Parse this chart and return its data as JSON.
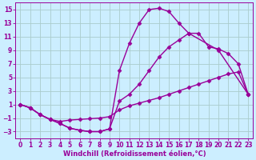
{
  "background_color": "#cceeff",
  "grid_color": "#aacccc",
  "line_color": "#990099",
  "marker": "D",
  "marker_size": 2.5,
  "line_width": 1.0,
  "xlabel": "Windchill (Refroidissement éolien,°C)",
  "xlabel_fontsize": 6,
  "tick_fontsize": 5.5,
  "xlim": [
    -0.5,
    23.5
  ],
  "ylim": [
    -4,
    16
  ],
  "yticks": [
    -3,
    -1,
    1,
    3,
    5,
    7,
    9,
    11,
    13,
    15
  ],
  "xticks": [
    0,
    1,
    2,
    3,
    4,
    5,
    6,
    7,
    8,
    9,
    10,
    11,
    12,
    13,
    14,
    15,
    16,
    17,
    18,
    19,
    20,
    21,
    22,
    23
  ],
  "curve1_x": [
    0,
    1,
    2,
    3,
    4,
    5,
    6,
    7,
    8,
    9,
    10,
    11,
    12,
    13,
    14,
    15,
    16,
    17,
    20,
    23
  ],
  "curve1_y": [
    1,
    0.5,
    -0.5,
    -1.2,
    -1.8,
    -2.5,
    -2.8,
    -3.0,
    -3.0,
    -2.6,
    6.0,
    10.0,
    13.0,
    15.0,
    15.2,
    14.7,
    13.0,
    11.5,
    9.0,
    2.5
  ],
  "curve2_x": [
    0,
    1,
    2,
    3,
    4,
    5,
    6,
    7,
    8,
    9,
    10,
    11,
    12,
    13,
    14,
    15,
    16,
    17,
    18,
    19,
    20,
    21,
    22,
    23
  ],
  "curve2_y": [
    1,
    0.5,
    -0.5,
    -1.2,
    -1.8,
    -2.5,
    -2.8,
    -3.0,
    -3.0,
    -2.6,
    1.5,
    2.5,
    4.0,
    6.0,
    8.0,
    9.5,
    10.5,
    11.5,
    11.5,
    9.5,
    9.2,
    8.5,
    7.0,
    2.5
  ],
  "curve3_x": [
    0,
    1,
    2,
    3,
    4,
    5,
    6,
    7,
    8,
    9,
    10,
    11,
    12,
    13,
    14,
    15,
    16,
    17,
    18,
    19,
    20,
    21,
    22,
    23
  ],
  "curve3_y": [
    1,
    0.5,
    -0.5,
    -1.2,
    -1.5,
    -1.3,
    -1.2,
    -1.1,
    -1.0,
    -0.8,
    0.2,
    0.8,
    1.2,
    1.6,
    2.0,
    2.5,
    3.0,
    3.5,
    4.0,
    4.5,
    5.0,
    5.5,
    5.8,
    2.5
  ]
}
